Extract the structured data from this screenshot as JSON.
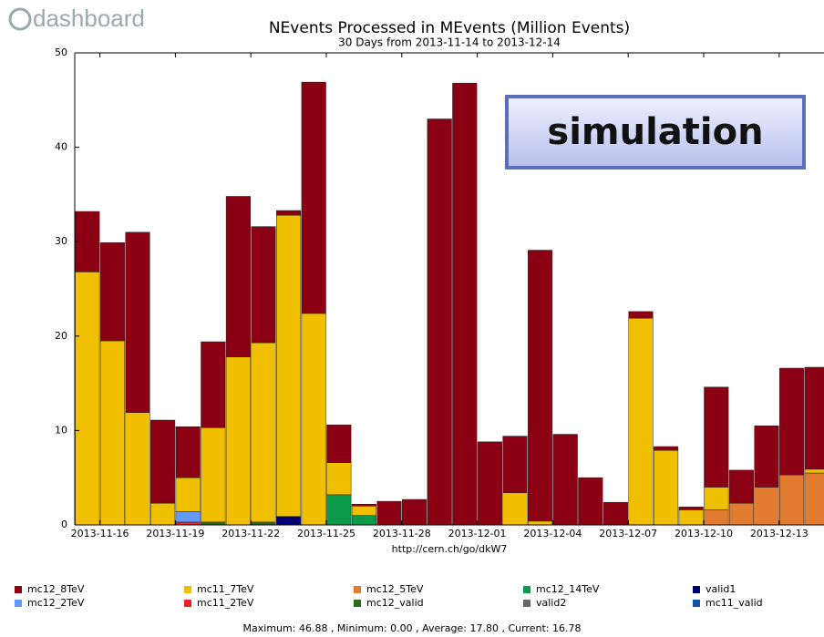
{
  "logo": "dashboard",
  "chart_data": {
    "type": "stacked_bar",
    "title": "NEvents Processed in MEvents (Million Events)",
    "subtitle": "30 Days from 2013-11-14 to 2013-12-14",
    "x_label": "http://cern.ch/go/dkW7",
    "annotation": "simulation",
    "footer": "Maximum: 46.88 , Minimum: 0.00 , Average: 17.80 , Current: 16.78",
    "categories": [
      null,
      "2013-11-16",
      null,
      null,
      "2013-11-19",
      null,
      null,
      "2013-11-22",
      null,
      null,
      "2013-11-25",
      null,
      null,
      "2013-11-28",
      null,
      null,
      "2013-12-01",
      null,
      null,
      "2013-12-04",
      null,
      null,
      "2013-12-07",
      null,
      null,
      "2013-12-10",
      null,
      null,
      "2013-12-13",
      null
    ],
    "ylim": [
      0,
      50
    ],
    "yticks": [
      0,
      10,
      20,
      30,
      40,
      50
    ],
    "series": [
      {
        "name": "mc12_8TeV",
        "color": "#8b0013",
        "values": [
          6.4,
          10.4,
          19.1,
          8.8,
          5.4,
          9.1,
          17.0,
          12.3,
          0.5,
          24.5,
          4.0,
          0.2,
          2.5,
          2.7,
          43.0,
          46.8,
          8.8,
          6.0,
          28.7,
          9.6,
          5.0,
          2.4,
          0.7,
          0.4,
          0.3,
          10.6,
          3.5,
          6.5,
          11.3,
          10.8
        ]
      },
      {
        "name": "mc11_7TeV",
        "color": "#f0c000",
        "values": [
          26.8,
          19.5,
          11.9,
          2.3,
          3.6,
          10.0,
          17.8,
          19.0,
          31.9,
          22.4,
          3.4,
          1.0,
          0,
          0,
          0,
          0,
          0,
          3.4,
          0.4,
          0,
          0,
          0,
          21.9,
          7.9,
          1.6,
          2.4,
          0,
          0,
          0,
          0.4
        ]
      },
      {
        "name": "mc12_5TeV",
        "color": "#e07b30",
        "values": [
          0,
          0,
          0,
          0,
          0,
          0,
          0,
          0,
          0,
          0,
          0,
          0,
          0,
          0,
          0,
          0,
          0,
          0,
          0,
          0,
          0,
          0,
          0,
          0,
          0,
          1.6,
          2.3,
          4.0,
          5.3,
          5.5
        ]
      },
      {
        "name": "mc12_14TeV",
        "color": "#0a9a4a",
        "values": [
          0,
          0,
          0,
          0,
          0,
          0,
          0,
          0,
          0,
          0,
          3.2,
          1.0,
          0,
          0,
          0,
          0,
          0,
          0,
          0,
          0,
          0,
          0,
          0,
          0,
          0,
          0,
          0,
          0,
          0,
          0
        ]
      },
      {
        "name": "valid1",
        "color": "#000070",
        "values": [
          0,
          0,
          0,
          0,
          0,
          0,
          0,
          0,
          0.9,
          0,
          0,
          0,
          0,
          0,
          0,
          0,
          0,
          0,
          0,
          0,
          0,
          0,
          0,
          0,
          0,
          0,
          0,
          0,
          0,
          0
        ]
      },
      {
        "name": "mc12_2TeV",
        "color": "#6699ff",
        "values": [
          0,
          0,
          0,
          0,
          1.1,
          0,
          0,
          0,
          0,
          0,
          0,
          0,
          0,
          0,
          0,
          0,
          0,
          0,
          0,
          0,
          0,
          0,
          0,
          0,
          0,
          0,
          0,
          0,
          0,
          0
        ]
      },
      {
        "name": "mc11_2TeV",
        "color": "#ee2222",
        "values": [
          0,
          0,
          0,
          0,
          0.3,
          0,
          0,
          0,
          0,
          0,
          0,
          0,
          0,
          0,
          0,
          0,
          0,
          0,
          0,
          0,
          0,
          0,
          0,
          0,
          0,
          0,
          0,
          0,
          0,
          0
        ]
      },
      {
        "name": "mc12_valid",
        "color": "#2a6a1a",
        "values": [
          0,
          0,
          0,
          0,
          0,
          0.3,
          0,
          0.3,
          0,
          0,
          0,
          0,
          0,
          0,
          0,
          0,
          0,
          0,
          0,
          0,
          0,
          0,
          0,
          0,
          0,
          0,
          0,
          0,
          0,
          0
        ]
      },
      {
        "name": "valid2",
        "color": "#666666",
        "values": [
          0,
          0,
          0,
          0,
          0,
          0,
          0,
          0,
          0,
          0,
          0,
          0,
          0,
          0,
          0,
          0,
          0,
          0,
          0,
          0,
          0,
          0,
          0,
          0,
          0,
          0,
          0,
          0,
          0,
          0
        ]
      },
      {
        "name": "mc11_valid",
        "color": "#1155aa",
        "values": [
          0,
          0,
          0,
          0,
          0,
          0,
          0,
          0,
          0,
          0,
          0,
          0,
          0,
          0,
          0,
          0,
          0,
          0,
          0,
          0,
          0,
          0,
          0,
          0,
          0,
          0,
          0,
          0,
          0,
          0
        ]
      }
    ]
  }
}
